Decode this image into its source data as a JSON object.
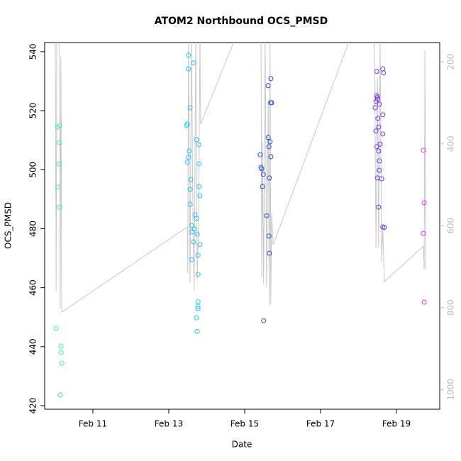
{
  "chart_data": {
    "type": "scatter",
    "title": "ATOM2 Northbound OCS_PMSD",
    "x_label": "Date",
    "y_label": "OCS_PMSD",
    "xlim": [
      9.73,
      20.14
    ],
    "xticks": [
      {
        "value": 11,
        "label": "Feb 11"
      },
      {
        "value": 13,
        "label": "Feb 13"
      },
      {
        "value": 15,
        "label": "Feb 15"
      },
      {
        "value": 17,
        "label": "Feb 17"
      },
      {
        "value": 19,
        "label": "Feb 19"
      }
    ],
    "ylim": [
      418.8,
      543.1
    ],
    "yticks": [
      420,
      440,
      460,
      480,
      500,
      520,
      540
    ],
    "y2lim": [
      1048,
      153
    ],
    "y2ticks": [
      200,
      400,
      600,
      800,
      1000
    ],
    "y2_color": "#bbbbbb",
    "series": [
      {
        "color": "#33eeaa",
        "x": [
          10.07,
          10.12,
          10.11,
          10.11,
          10.07,
          10.12,
          10.03,
          10.16,
          10.16,
          10.18,
          10.14
        ],
        "values": [
          514.5,
          515,
          509.2,
          502,
          494.1,
          487.3,
          446.2,
          440.2,
          438,
          434.4,
          423.6
        ]
      },
      {
        "color": "#22c4ee",
        "x": [
          13.52,
          13.52,
          13.65,
          13.56,
          13.47,
          13.49,
          13.54,
          13.52,
          13.49,
          13.73,
          13.79,
          13.8,
          13.58,
          13.56,
          13.8,
          13.82,
          13.56,
          13.69,
          13.73,
          13.6,
          13.67,
          13.62,
          13.75,
          13.65,
          13.82,
          13.77,
          13.6,
          13.77,
          13.77,
          13.77,
          13.77,
          13.73,
          13.75
        ],
        "values": [
          538.8,
          534.2,
          536.2,
          521,
          515,
          515.5,
          506.3,
          504.2,
          502.5,
          510.2,
          508.5,
          502,
          496.7,
          493.3,
          494.3,
          491.2,
          488.3,
          484.7,
          483.5,
          481.1,
          479.9,
          478.9,
          478.2,
          475.5,
          474.6,
          471,
          469.5,
          464.5,
          455.3,
          453.7,
          452.9,
          449.8,
          445.2
        ]
      },
      {
        "color": "#2a4be8",
        "x": [
          15.69,
          15.62,
          15.71,
          15.69,
          15.41,
          15.43,
          15.45,
          15.49,
          15.47,
          15.62,
          15.67,
          15.64,
          15.69,
          15.65,
          15.58,
          15.64,
          15.65,
          15.5
        ],
        "values": [
          530.9,
          528.5,
          522.7,
          522.7,
          505.1,
          500.8,
          500.3,
          498.4,
          494.3,
          510.9,
          509.5,
          507.8,
          504.4,
          497.2,
          484.4,
          477.5,
          471.7,
          448.8
        ]
      },
      {
        "color": "#7733ee",
        "x": [
          18.48,
          18.64,
          18.66,
          18.5,
          18.48,
          18.5,
          18.46,
          18.55,
          18.44,
          18.51,
          18.64,
          18.53,
          18.46,
          18.64,
          18.57,
          18.48,
          18.53,
          18.55,
          18.55,
          18.5,
          18.61,
          18.53,
          18.64,
          18.68
        ],
        "values": [
          533.3,
          534.2,
          532.8,
          524.6,
          525.1,
          523.9,
          523.2,
          522.2,
          521,
          517.4,
          518.6,
          514.5,
          513.1,
          512.1,
          508.7,
          507.8,
          506.3,
          503,
          499.8,
          497.2,
          496.9,
          487.3,
          480.6,
          480.4
        ]
      },
      {
        "color": "#dd33ee",
        "x": [
          19.71,
          19.73,
          19.71,
          19.73
        ],
        "values": [
          506.6,
          488.8,
          478.4,
          455.1
        ]
      }
    ],
    "line": {
      "color": "#c8c8c8",
      "axis": "y2",
      "x": [
        10.01,
        10.03,
        10.05,
        10.12,
        10.14,
        10.16,
        10.18,
        13.49,
        13.5,
        13.52,
        13.56,
        13.6,
        13.64,
        13.67,
        13.71,
        13.75,
        13.79,
        13.82,
        13.84,
        14.74,
        15.43,
        15.45,
        15.47,
        15.5,
        15.54,
        15.58,
        15.62,
        15.65,
        15.67,
        15.69,
        15.71,
        15.75,
        17.77,
        18.42,
        18.46,
        18.5,
        18.53,
        18.57,
        18.61,
        18.64,
        18.68,
        19.71,
        19.73,
        19.75,
        19.77
      ],
      "values": [
        136,
        759,
        136,
        136,
        803,
        188,
        811,
        603,
        716,
        145,
        739,
        145,
        621,
        759,
        145,
        733,
        569,
        145,
        352,
        145,
        145,
        725,
        396,
        742,
        145,
        751,
        292,
        794,
        145,
        790,
        569,
        647,
        145,
        145,
        655,
        240,
        655,
        145,
        690,
        603,
        737,
        650,
        707,
        171,
        707
      ]
    }
  }
}
